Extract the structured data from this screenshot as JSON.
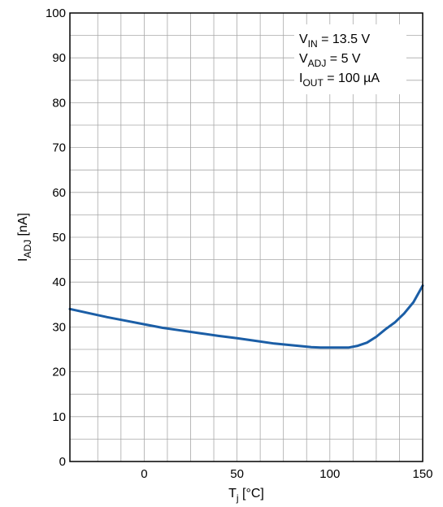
{
  "chart_data": {
    "type": "line",
    "xlabel": {
      "main": "T",
      "sub": "j",
      "unit": " [°C]"
    },
    "ylabel": {
      "main": "I",
      "sub": "ADJ",
      "unit": " [nA]"
    },
    "xlim": [
      -40,
      150
    ],
    "ylim": [
      0,
      100
    ],
    "x_ticks": [
      0,
      50,
      100,
      150
    ],
    "y_ticks": [
      0,
      10,
      20,
      30,
      40,
      50,
      60,
      70,
      80,
      90,
      100
    ],
    "grid": true,
    "annotations": [
      {
        "main": "V",
        "sub": "IN",
        "rest": " = 13.5 V"
      },
      {
        "main": "V",
        "sub": "ADJ",
        "rest": " = 5 V"
      },
      {
        "main": "I",
        "sub": "OUT",
        "rest": " = 100 µA"
      }
    ],
    "series": [
      {
        "color": "#1b5ea6",
        "x": [
          -40,
          -30,
          -20,
          -10,
          0,
          10,
          20,
          30,
          40,
          50,
          60,
          70,
          80,
          90,
          95,
          100,
          105,
          110,
          115,
          120,
          125,
          130,
          135,
          140,
          145,
          150
        ],
        "y": [
          34,
          33.1,
          32.2,
          31.4,
          30.6,
          29.8,
          29.2,
          28.6,
          28.0,
          27.5,
          26.9,
          26.3,
          25.9,
          25.5,
          25.4,
          25.4,
          25.4,
          25.4,
          25.8,
          26.5,
          27.8,
          29.5,
          31.0,
          33.0,
          35.5,
          39.2
        ]
      }
    ]
  }
}
